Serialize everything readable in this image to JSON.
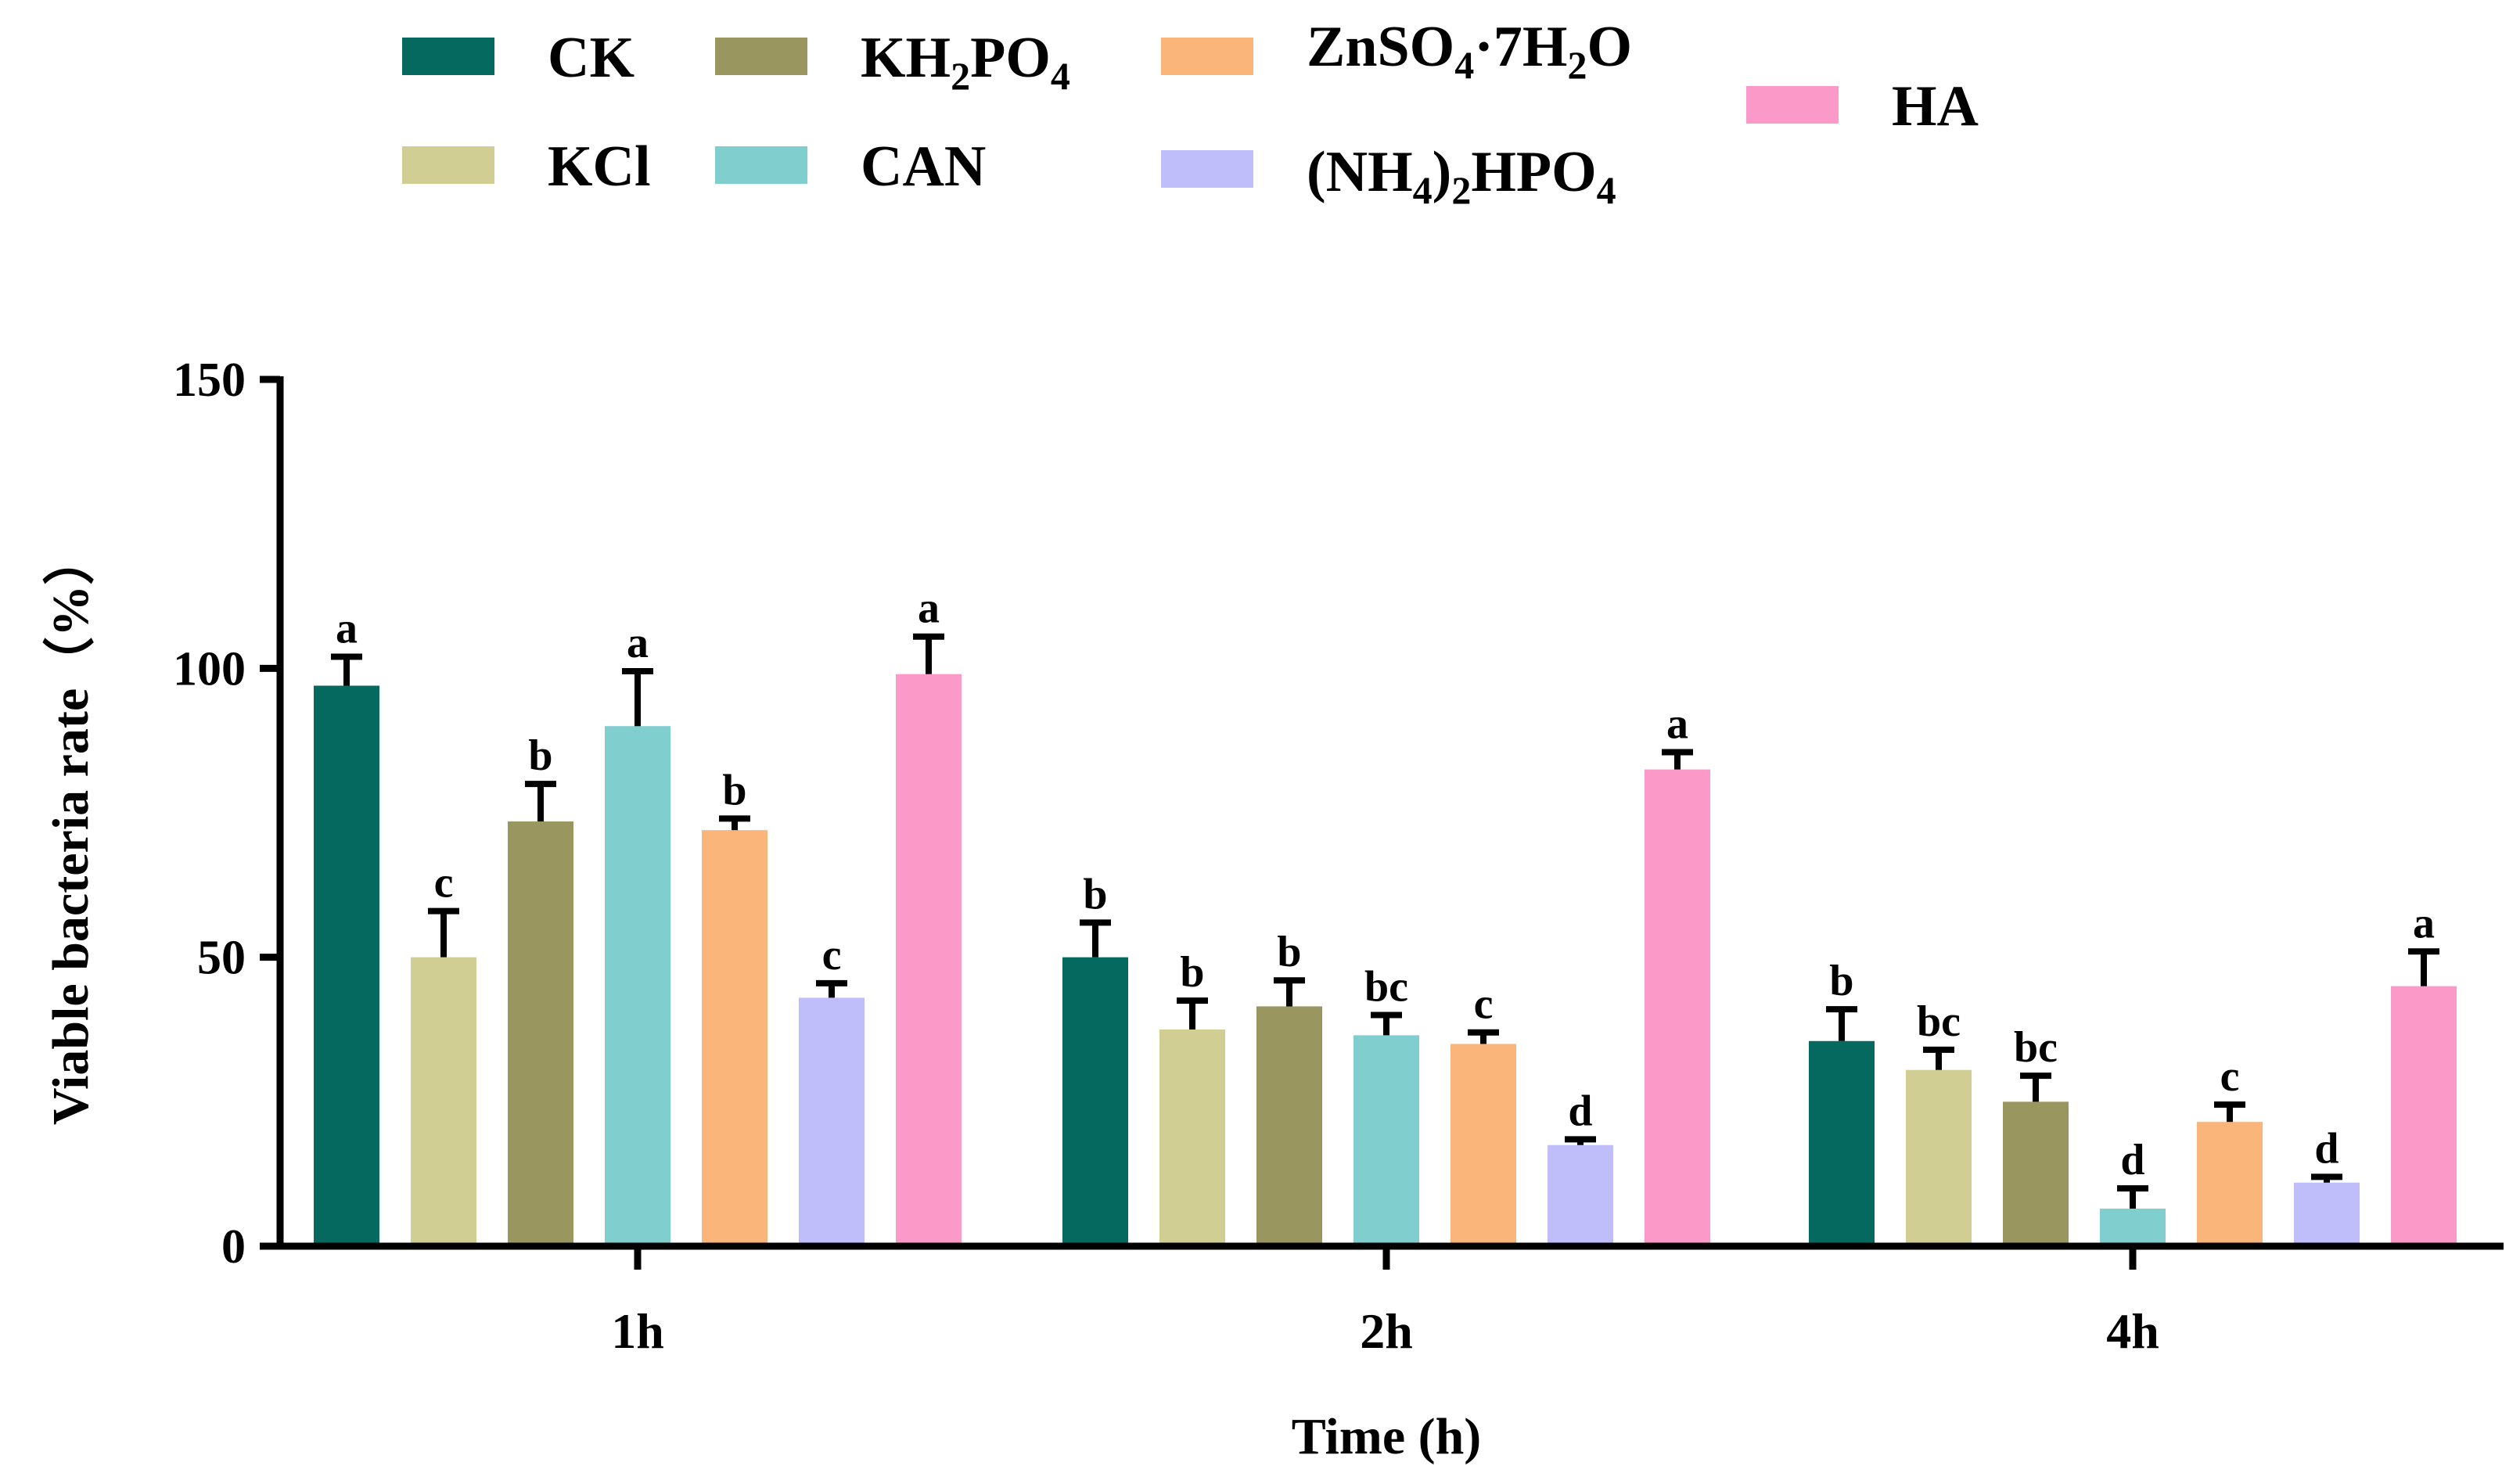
{
  "chart_data": {
    "type": "bar",
    "title": "",
    "xlabel": "Time (h)",
    "ylabel": "Viable bacteria rate（%）",
    "ylim": [
      0,
      150
    ],
    "yticks": [
      "0",
      "50",
      "100",
      "150"
    ],
    "categories": [
      "1h",
      "2h",
      "4h"
    ],
    "legend_position": "top",
    "series": [
      {
        "name": "CK",
        "color": "#056960",
        "values": [
          97,
          50,
          35.5
        ],
        "errors": [
          5,
          6,
          5.5
        ],
        "letters": [
          "a",
          "b",
          "b"
        ]
      },
      {
        "name": "KCl",
        "color": "#D1CE93",
        "values": [
          50,
          37.5,
          30.5
        ],
        "errors": [
          8,
          5,
          3.5
        ],
        "letters": [
          "c",
          "b",
          "bc"
        ]
      },
      {
        "name": "KH2PO4",
        "color": "#9A9660",
        "values": [
          73.5,
          41.5,
          25
        ],
        "errors": [
          6.5,
          4.5,
          4.5
        ],
        "letters": [
          "b",
          "b",
          "bc"
        ]
      },
      {
        "name": "CAN",
        "color": "#80CECE",
        "values": [
          90,
          36.5,
          6.5
        ],
        "errors": [
          9.5,
          3.5,
          3.5
        ],
        "letters": [
          "a",
          "bc",
          "d"
        ]
      },
      {
        "name": "ZnSO4·7H2O",
        "color": "#FAB57B",
        "values": [
          72,
          35,
          21.5
        ],
        "errors": [
          2,
          2,
          3
        ],
        "letters": [
          "b",
          "c",
          "c"
        ]
      },
      {
        "name": "(NH4)2HPO4",
        "color": "#C0BDFB",
        "values": [
          43,
          17.5,
          11
        ],
        "errors": [
          2.5,
          1,
          1
        ],
        "letters": [
          "c",
          "d",
          "d"
        ]
      },
      {
        "name": "HA",
        "color": "#FB9AC9",
        "values": [
          99,
          82.5,
          45
        ],
        "errors": [
          6.5,
          3,
          6
        ],
        "letters": [
          "a",
          "a",
          "a"
        ]
      }
    ]
  },
  "legend": {
    "items": [
      {
        "key": "ck",
        "parts": [
          {
            "t": "CK"
          }
        ]
      },
      {
        "key": "kcl",
        "parts": [
          {
            "t": "KCl"
          }
        ]
      },
      {
        "key": "kh2po4",
        "parts": [
          {
            "t": "KH"
          },
          {
            "t": "2",
            "sub": true
          },
          {
            "t": "PO"
          },
          {
            "t": "4",
            "sub": true
          }
        ]
      },
      {
        "key": "can",
        "parts": [
          {
            "t": "CAN"
          }
        ]
      },
      {
        "key": "znso4",
        "parts": [
          {
            "t": "ZnSO"
          },
          {
            "t": "4",
            "sub": true
          },
          {
            "t": "·7H"
          },
          {
            "t": "2",
            "sub": true
          },
          {
            "t": "O"
          }
        ]
      },
      {
        "key": "nh4hpo4",
        "parts": [
          {
            "t": "(NH"
          },
          {
            "t": "4",
            "sub": true
          },
          {
            "t": ")"
          },
          {
            "t": "2",
            "sub": true
          },
          {
            "t": "HPO"
          },
          {
            "t": "4",
            "sub": true
          }
        ]
      },
      {
        "key": "ha",
        "parts": [
          {
            "t": "HA"
          }
        ]
      }
    ]
  }
}
